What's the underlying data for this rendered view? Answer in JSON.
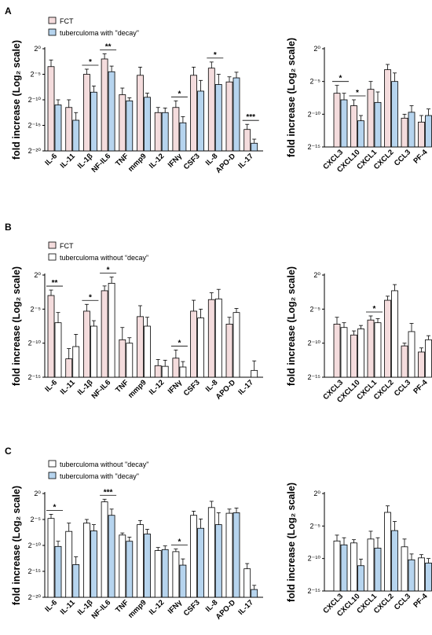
{
  "colors": {
    "fct": "#f4dcdd",
    "decay": "#b6d4ee",
    "nodecay": "#ffffff",
    "stroke": "#000000"
  },
  "panels": {
    "A": {
      "label": "A",
      "legend": [
        {
          "key": "fct",
          "text": "FCT"
        },
        {
          "key": "decay",
          "text": "tuberculoma with \"decay\""
        }
      ]
    },
    "B": {
      "label": "B",
      "legend": [
        {
          "key": "fct",
          "text": "FCT"
        },
        {
          "key": "nodecay",
          "text": "tuberculoma without “decay”"
        }
      ]
    },
    "C": {
      "label": "C",
      "legend": [
        {
          "key": "nodecay",
          "text": "tuberculoma without \"decay\""
        },
        {
          "key": "decay",
          "text": "tuberculoma with \"decay\""
        }
      ]
    }
  },
  "chart_data": [
    {
      "id": "A-left",
      "panel": "A",
      "type": "bar",
      "ylabel": "fold increase (Log₂ scale)",
      "yticks": [
        "2⁰",
        "2⁻⁵",
        "2⁻¹⁰",
        "2⁻¹⁵",
        "2⁻²⁰"
      ],
      "ylim": [
        -20,
        0
      ],
      "categories": [
        "IL-6",
        "IL-11",
        "IL-1β",
        "NF-IL6",
        "TNF",
        "mmp9",
        "IL-12",
        "IFNγ",
        "CSF3",
        "IL-8",
        "APO-D",
        "IL-17"
      ],
      "series": [
        {
          "name": "FCT",
          "color_key": "fct",
          "values": [
            -3.5,
            -11.5,
            -5,
            -2,
            -9,
            -5.2,
            -12.5,
            -11.5,
            -5.2,
            -3.8,
            -6.5,
            -15.8
          ],
          "errors": [
            1.3,
            1.5,
            1.0,
            1.0,
            1.3,
            1.6,
            1.0,
            1.3,
            1.6,
            1.2,
            1.0,
            1.0
          ]
        },
        {
          "name": "tuberculoma with \"decay\"",
          "color_key": "decay",
          "values": [
            -11,
            -14,
            -8.5,
            -4.5,
            -10.2,
            -9.5,
            -12.5,
            -14.5,
            -8.3,
            -7,
            -5.7,
            -18.5
          ],
          "errors": [
            1.0,
            1.5,
            1.2,
            1.1,
            0.6,
            0.8,
            0.9,
            1.2,
            2.1,
            2.0,
            1.1,
            0.8
          ]
        }
      ],
      "significance": [
        {
          "i": 2,
          "text": "*"
        },
        {
          "i": 3,
          "text": "**"
        },
        {
          "i": 7,
          "text": "*"
        },
        {
          "i": 9,
          "text": "*"
        },
        {
          "i": 11,
          "text": "***"
        }
      ]
    },
    {
      "id": "A-right",
      "panel": "A",
      "type": "bar",
      "ylabel": "fold increase (Log₂ scale)",
      "yticks": [
        "2⁰",
        "2⁻⁵",
        "2⁻¹⁰",
        "2⁻¹⁵"
      ],
      "ylim": [
        -15,
        0
      ],
      "categories": [
        "CXCL3",
        "CXCL10",
        "CXCL1",
        "CXCL2",
        "CCL3",
        "PF-4"
      ],
      "series": [
        {
          "name": "FCT",
          "color_key": "fct",
          "values": [
            -6.8,
            -8.7,
            -6.2,
            -3.2,
            -10.6,
            -11.2
          ],
          "errors": [
            1.2,
            0.9,
            1.2,
            0.8,
            0.6,
            1.0
          ]
        },
        {
          "name": "tuberculoma with \"decay\"",
          "color_key": "decay",
          "values": [
            -7.8,
            -11,
            -8.2,
            -5,
            -9.7,
            -10.2
          ],
          "errors": [
            1.0,
            0.8,
            1.6,
            1.3,
            1.0,
            1.0
          ]
        }
      ],
      "significance": [
        {
          "i": 0,
          "text": "*"
        },
        {
          "i": 1,
          "text": "*"
        }
      ]
    },
    {
      "id": "B-left",
      "panel": "B",
      "type": "bar",
      "ylabel": "fold increase (Log₂ scale)",
      "yticks": [
        "2⁰",
        "2⁻⁵",
        "2⁻¹⁰",
        "2⁻¹⁵"
      ],
      "ylim": [
        -15,
        0
      ],
      "categories": [
        "IL-6",
        "IL-11",
        "IL-1β",
        "NF-IL6",
        "TNF",
        "mmp9",
        "IL-12",
        "IFNγ",
        "CSF3",
        "IL-8",
        "APO-D",
        "IL-17"
      ],
      "series": [
        {
          "name": "FCT",
          "color_key": "fct",
          "values": [
            -3,
            -12.3,
            -5.3,
            -2.3,
            -9.5,
            -6.1,
            -13.3,
            -12.2,
            -5.3,
            -3.6,
            -7.2,
            -15
          ],
          "errors": [
            0.8,
            1.5,
            1.0,
            0.7,
            1.8,
            1.6,
            0.9,
            1.2,
            1.6,
            1.0,
            1.0,
            0
          ]
        },
        {
          "name": "tuberculoma without “decay”",
          "color_key": "nodecay",
          "values": [
            -7,
            -10.5,
            -7.5,
            -1.2,
            -10,
            -7.5,
            -13.4,
            -13.5,
            -6.3,
            -3.5,
            -5.5,
            -14
          ],
          "errors": [
            1.5,
            1.8,
            0.8,
            0.9,
            0.8,
            1.3,
            0.9,
            0.8,
            1.3,
            1.4,
            0.6,
            1.4
          ]
        }
      ],
      "significance": [
        {
          "i": 0,
          "text": "**"
        },
        {
          "i": 2,
          "text": "*"
        },
        {
          "i": 3,
          "text": "*"
        },
        {
          "i": 7,
          "text": "*"
        }
      ]
    },
    {
      "id": "B-right",
      "panel": "B",
      "type": "bar",
      "ylabel": "fold increase (Log₂ scale)",
      "yticks": [
        "2⁰",
        "2⁻⁵",
        "2⁻¹⁰",
        "2⁻¹⁵"
      ],
      "ylim": [
        -15,
        0
      ],
      "categories": [
        "CXCL3",
        "CXCL10",
        "CXCL1",
        "CXCL2",
        "CCL3",
        "PF-4"
      ],
      "series": [
        {
          "name": "FCT",
          "color_key": "fct",
          "values": [
            -7.2,
            -8.8,
            -6.6,
            -3.7,
            -10.4,
            -11.3
          ],
          "errors": [
            1.0,
            0.6,
            0.6,
            0.6,
            0.4,
            0.6
          ]
        },
        {
          "name": "tuberculoma without “decay”",
          "color_key": "nodecay",
          "values": [
            -7.7,
            -7.9,
            -7,
            -2.3,
            -8.3,
            -9.5
          ],
          "errors": [
            0.7,
            0.5,
            0.6,
            0.9,
            1.2,
            0.6
          ]
        }
      ],
      "significance": [
        {
          "i": 2,
          "text": "*"
        }
      ]
    },
    {
      "id": "C-left",
      "panel": "C",
      "type": "bar",
      "ylabel": "fold increase (Log₂ scale)",
      "yticks": [
        "2⁰",
        "2⁻⁵",
        "2⁻¹⁰",
        "2⁻¹⁵",
        "2⁻²⁰"
      ],
      "ylim": [
        -20,
        0
      ],
      "categories": [
        "IL-6",
        "IL-11",
        "IL-1β",
        "NF-IL6",
        "TNF",
        "mmp9",
        "IL-12",
        "IFNγ",
        "CSF3",
        "IL-8",
        "APO-D",
        "IL-17"
      ],
      "series": [
        {
          "name": "tuberculoma without \"decay\"",
          "color_key": "nodecay",
          "values": [
            -4.8,
            -7.3,
            -5.7,
            -1.6,
            -8,
            -6,
            -11,
            -11.2,
            -4.2,
            -2.7,
            -3.8,
            -14.5
          ],
          "errors": [
            0.8,
            1.6,
            0.7,
            0.5,
            0.4,
            0.8,
            0.6,
            0.5,
            0.8,
            1.2,
            0.8,
            1.0
          ]
        },
        {
          "name": "tuberculoma with \"decay\"",
          "color_key": "decay",
          "values": [
            -10.2,
            -13.7,
            -7.2,
            -4.2,
            -9.2,
            -7.8,
            -10.8,
            -13.8,
            -6.7,
            -6,
            -3.7,
            -18.5
          ],
          "errors": [
            1.0,
            1.5,
            1.2,
            1.2,
            0.8,
            0.9,
            0.7,
            1.2,
            1.8,
            2.3,
            0.9,
            0.8
          ]
        }
      ],
      "significance": [
        {
          "i": 0,
          "text": "*"
        },
        {
          "i": 3,
          "text": "***"
        },
        {
          "i": 7,
          "text": "*"
        }
      ]
    },
    {
      "id": "C-right",
      "panel": "C",
      "type": "bar",
      "ylabel": "fold increase (Log₂ scale)",
      "yticks": [
        "2⁰",
        "2⁻⁵",
        "2⁻¹⁰",
        "2⁻¹⁵"
      ],
      "ylim": [
        -15,
        0
      ],
      "categories": [
        "CXCL3",
        "CXCL10",
        "CXCL1",
        "CXCL2",
        "CCL3",
        "PF-4"
      ],
      "series": [
        {
          "name": "tuberculoma without \"decay\"",
          "color_key": "nodecay",
          "values": [
            -7.3,
            -7.6,
            -7.0,
            -2.9,
            -8.2,
            -9.9
          ],
          "errors": [
            0.9,
            0.5,
            1.2,
            1.0,
            1.2,
            0.5
          ]
        },
        {
          "name": "tuberculoma with \"decay\"",
          "color_key": "decay",
          "values": [
            -7.9,
            -11.1,
            -8.4,
            -5.7,
            -10.2,
            -10.7
          ],
          "errors": [
            1.1,
            1.0,
            1.6,
            1.4,
            0.9,
            0.7
          ]
        }
      ],
      "significance": []
    }
  ]
}
